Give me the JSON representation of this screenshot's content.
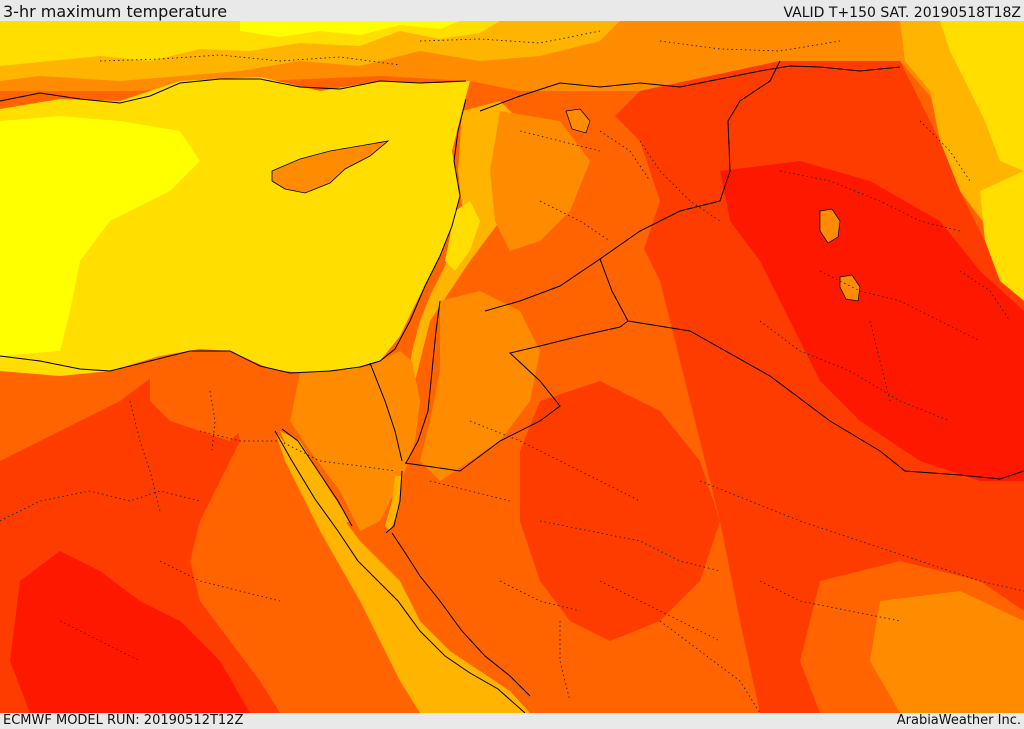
{
  "header": {
    "title": "3-hr maximum temperature",
    "valid": "VALID T+150 SAT. 20190518T18Z"
  },
  "footer": {
    "model_run": "ECMWF MODEL RUN: 20190512T12Z",
    "credit": "ArabiaWeather Inc."
  },
  "colors": {
    "pale_yellow": "#ffff00",
    "sea_yellow": "#ffde00",
    "amber": "#ffb400",
    "orange": "#ff8c00",
    "dark_orange": "#ff6400",
    "red_orange": "#ff3c00",
    "red": "#ff1800",
    "border": "#000000"
  }
}
